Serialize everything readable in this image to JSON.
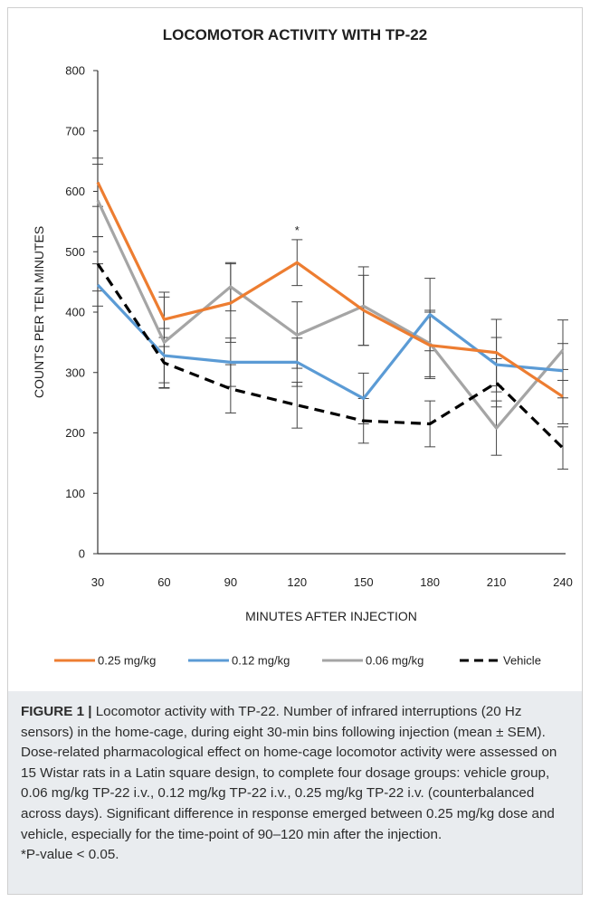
{
  "chart_data": {
    "type": "line",
    "title": "LOCOMOTOR ACTIVITY WITH TP-22",
    "xlabel": "MINUTES AFTER INJECTION",
    "ylabel": "COUNTS PER TEN MINUTES",
    "x": [
      30,
      60,
      90,
      120,
      150,
      180,
      210,
      240
    ],
    "x_tick_labels": [
      "30",
      "60",
      "90",
      "120",
      "150",
      "180",
      "210",
      "240"
    ],
    "ylim": [
      0,
      800
    ],
    "y_ticks": [
      0,
      100,
      200,
      300,
      400,
      500,
      600,
      700,
      800
    ],
    "y_tick_labels": [
      "0",
      "100",
      "200",
      "300",
      "400",
      "500",
      "600",
      "700",
      "800"
    ],
    "grid": false,
    "legend_position": "bottom",
    "series": [
      {
        "name": "0.25 mg/kg",
        "color": "#ed7d31",
        "dash": "solid",
        "values": [
          615,
          388,
          415,
          482,
          403,
          345,
          333,
          260
        ],
        "sem": [
          40,
          45,
          65,
          38,
          58,
          55,
          55,
          45
        ]
      },
      {
        "name": "0.12 mg/kg",
        "color": "#5b9bd5",
        "dash": "solid",
        "values": [
          445,
          328,
          317,
          317,
          257,
          396,
          313,
          303
        ],
        "sem": [
          35,
          45,
          40,
          40,
          42,
          60,
          45,
          45
        ]
      },
      {
        "name": "0.06 mg/kg",
        "color": "#a5a5a5",
        "dash": "solid",
        "values": [
          585,
          350,
          442,
          362,
          410,
          348,
          208,
          337
        ],
        "sem": [
          60,
          75,
          40,
          55,
          65,
          55,
          45,
          50
        ]
      },
      {
        "name": "Vehicle",
        "color": "#000000",
        "dash": "dashed",
        "values": [
          480,
          316,
          273,
          246,
          220,
          215,
          283,
          175
        ],
        "sem": [
          45,
          42,
          40,
          38,
          37,
          38,
          40,
          35
        ]
      }
    ],
    "annotations": [
      {
        "x": 120,
        "text": "*"
      }
    ]
  },
  "caption": {
    "label": "FIGURE 1 |",
    "text": " Locomotor activity with TP-22. Number of infrared interruptions (20 Hz sensors) in the home-cage, during eight 30-min bins following injection (mean ± SEM). Dose-related pharmacological effect on home-cage locomotor activity were assessed on 15 Wistar rats in a Latin square design, to complete four dosage groups: vehicle group, 0.06 mg/kg TP-22 i.v., 0.12 mg/kg TP-22 i.v., 0.25 mg/kg TP-22 i.v. (counterbalanced across days). Significant difference in response emerged between 0.25 mg/kg dose and vehicle, especially for the time-point of 90–120 min after the injection.",
    "note": "*P-value < 0.05."
  }
}
